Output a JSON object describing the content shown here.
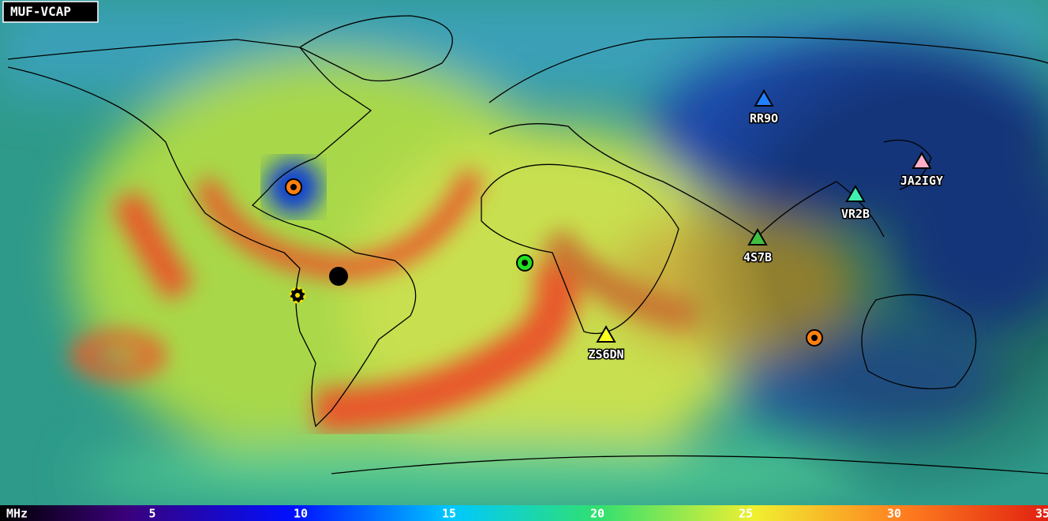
{
  "map": {
    "title": "MUF-VCAP",
    "stations": [
      "RR9O",
      "JA2IGY",
      "VR2B",
      "4S7B",
      "ZS6DN"
    ],
    "colorbar": {
      "unit": "MHz",
      "ticks": [
        5,
        10,
        15,
        20,
        25,
        30,
        35
      ]
    }
  }
}
